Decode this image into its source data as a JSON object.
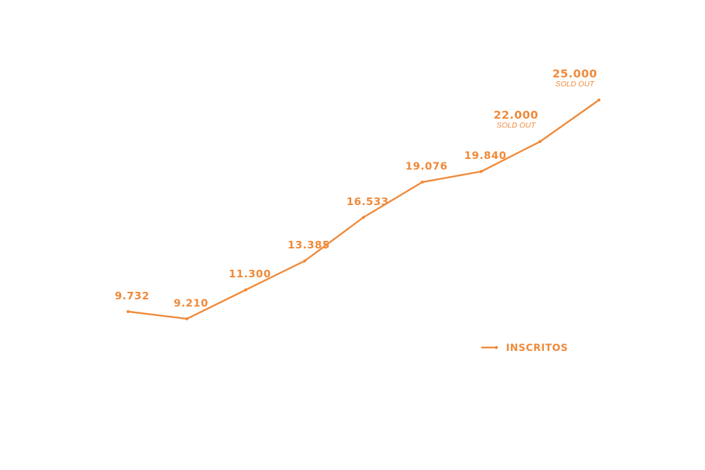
{
  "colors": {
    "accent": "#F08A3A",
    "background": "#FFFFFF"
  },
  "chart_data": {
    "type": "line",
    "title": "",
    "xlabel": "",
    "ylabel": "",
    "grid": false,
    "legend_position": "bottom-right",
    "ylim": [
      6000,
      27000
    ],
    "series": [
      {
        "name": "INSCRITOS",
        "values": [
          9732,
          9210,
          11300,
          13385,
          16533,
          19076,
          19840,
          22000,
          25000
        ],
        "labels": [
          "9.732",
          "9.210",
          "11.300",
          "13.385",
          "16.533",
          "19.076",
          "19.840",
          "22.000",
          "25.000"
        ],
        "annotations": [
          "",
          "",
          "",
          "",
          "",
          "",
          "",
          "SOLD OUT",
          "SOLD OUT"
        ]
      }
    ]
  }
}
